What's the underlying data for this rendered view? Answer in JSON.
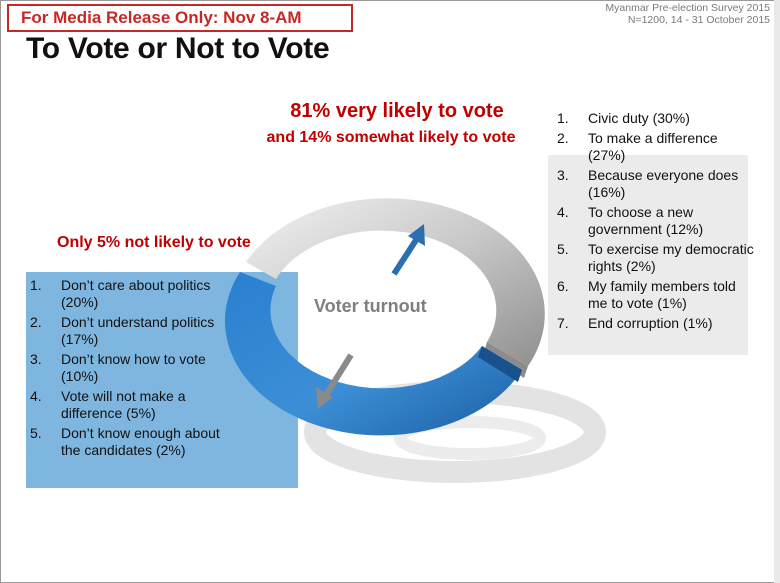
{
  "badge": "For Media Release Only: Nov 8-AM",
  "survey": {
    "line1": "Myanmar Pre-election Survey 2015",
    "line2": "N=1200, 14 - 31 October 2015"
  },
  "title": "To Vote or Not to Vote",
  "likely": {
    "very": "81% very likely to vote",
    "somewhat": "and 14% somewhat likely to vote"
  },
  "not_likely": "Only 5% not likely to vote",
  "center_label": "Voter turnout",
  "reasons_not": [
    {
      "num": "1.",
      "text": "Don’t care about politics (20%)"
    },
    {
      "num": "2.",
      "text": "Don’t understand politics (17%)"
    },
    {
      "num": "3.",
      "text": "Don’t know how to vote (10%)"
    },
    {
      "num": "4.",
      "text": "Vote will not make a difference (5%)"
    },
    {
      "num": "5.",
      "text": "Don’t know enough about the candidates (2%)"
    }
  ],
  "reasons_vote": [
    {
      "num": "1.",
      "text": "Civic duty (30%)"
    },
    {
      "num": "2.",
      "text": "To make a difference (27%)"
    },
    {
      "num": "3.",
      "text": "Because everyone does (16%)"
    },
    {
      "num": "4.",
      "text": "To choose a new government (12%)"
    },
    {
      "num": "5.",
      "text": "To exercise my democratic rights (2%)"
    },
    {
      "num": "6.",
      "text": "My family members told me to vote (1%)"
    },
    {
      "num": "7.",
      "text": "End corruption  (1%)"
    }
  ],
  "colors": {
    "accent_red": "#c00000",
    "blue": "#2f7bc4",
    "gray": "#b5b5b5",
    "panel_blue": "#7eb6df",
    "panel_gray": "#ebebeb"
  }
}
